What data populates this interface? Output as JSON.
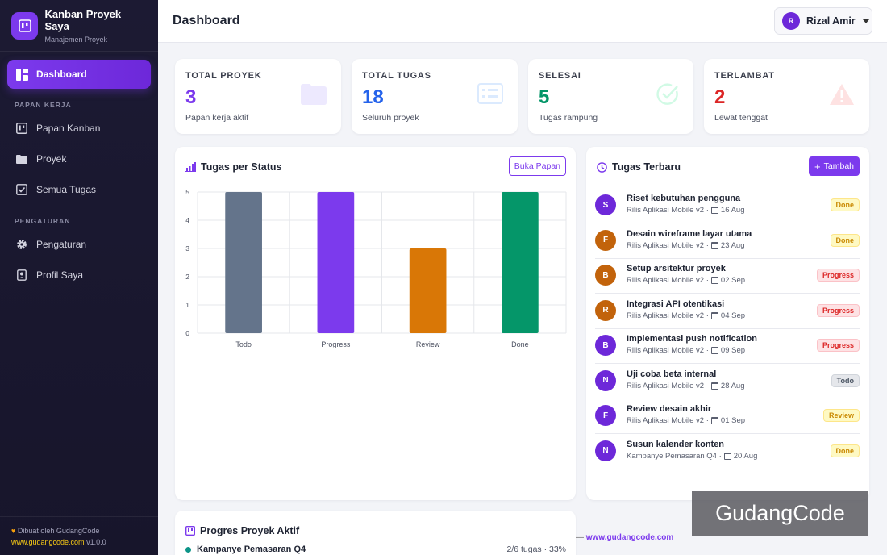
{
  "brand": {
    "title": "Kanban Proyek Saya",
    "subtitle": "Manajemen Proyek"
  },
  "sidebar": {
    "active": {
      "label": "Dashboard",
      "icon": "dashboard-icon"
    },
    "section_workspace": "PAPAN KERJA",
    "workspace_items": [
      {
        "label": "Papan Kanban",
        "icon": "kanban-icon"
      },
      {
        "label": "Proyek",
        "icon": "folder-icon"
      },
      {
        "label": "Semua Tugas",
        "icon": "checklist-icon"
      }
    ],
    "section_settings": "PENGATURAN",
    "settings_items": [
      {
        "label": "Pengaturan",
        "icon": "gear-icon"
      },
      {
        "label": "Profil Saya",
        "icon": "profile-icon"
      }
    ],
    "footer": {
      "made_by": "Dibuat oleh GudangCode",
      "link": "www.gudangcode.com",
      "version": "v1.0.0"
    }
  },
  "header": {
    "title": "Dashboard",
    "user_initial": "R",
    "user_name": "Rizal Amir"
  },
  "stats": [
    {
      "label": "TOTAL PROYEK",
      "value": "3",
      "sub": "Papan kerja aktif",
      "color": "#7c3aed",
      "icon": "folder-icon"
    },
    {
      "label": "TOTAL TUGAS",
      "value": "18",
      "sub": "Seluruh proyek",
      "color": "#2563eb",
      "icon": "list-icon"
    },
    {
      "label": "SELESAI",
      "value": "5",
      "sub": "Tugas rampung",
      "color": "#059669",
      "icon": "check-circle-icon"
    },
    {
      "label": "TERLAMBAT",
      "value": "2",
      "sub": "Lewat tenggat",
      "color": "#dc2626",
      "icon": "warning-icon"
    }
  ],
  "chart_card": {
    "title": "Tugas per Status",
    "button": "Buka Papan"
  },
  "chart_data": {
    "type": "bar",
    "categories": [
      "Todo",
      "Progress",
      "Review",
      "Done"
    ],
    "values": [
      5,
      5,
      3,
      5
    ],
    "colors": [
      "#64748b",
      "#7c3aed",
      "#d97706",
      "#059669"
    ],
    "title": "Tugas per Status",
    "ylim": [
      0,
      5
    ],
    "yticks": [
      0,
      1,
      2,
      3,
      4,
      5
    ],
    "grid": true
  },
  "tasks_card": {
    "title": "Tugas Terbaru",
    "add_button": "Tambah",
    "tasks": [
      {
        "initial": "S",
        "avatar_color": "#6d28d9",
        "title": "Riset kebutuhan pengguna",
        "project": "Rilis Aplikasi Mobile v2 ·",
        "date": "16 Aug",
        "status": "Done"
      },
      {
        "initial": "F",
        "avatar_color": "#c2630b",
        "title": "Desain wireframe layar utama",
        "project": "Rilis Aplikasi Mobile v2 ·",
        "date": "23 Aug",
        "status": "Done"
      },
      {
        "initial": "B",
        "avatar_color": "#c2630b",
        "title": "Setup arsitektur proyek",
        "project": "Rilis Aplikasi Mobile v2 ·",
        "date": "02 Sep",
        "status": "Progress"
      },
      {
        "initial": "R",
        "avatar_color": "#c2630b",
        "title": "Integrasi API otentikasi",
        "project": "Rilis Aplikasi Mobile v2 ·",
        "date": "04 Sep",
        "status": "Progress"
      },
      {
        "initial": "B",
        "avatar_color": "#6d28d9",
        "title": "Implementasi push notification",
        "project": "Rilis Aplikasi Mobile v2 ·",
        "date": "09 Sep",
        "status": "Progress"
      },
      {
        "initial": "N",
        "avatar_color": "#6d28d9",
        "title": "Uji coba beta internal",
        "project": "Rilis Aplikasi Mobile v2 ·",
        "date": "28 Aug",
        "status": "Todo"
      },
      {
        "initial": "F",
        "avatar_color": "#6d28d9",
        "title": "Review desain akhir",
        "project": "Rilis Aplikasi Mobile v2 ·",
        "date": "01 Sep",
        "status": "Review"
      },
      {
        "initial": "N",
        "avatar_color": "#6d28d9",
        "title": "Susun kalender konten",
        "project": "Kampanye Pemasaran Q4 ·",
        "date": "20 Aug",
        "status": "Done"
      }
    ]
  },
  "progress_card": {
    "title": "Progres Proyek Aktif",
    "projects": [
      {
        "name": "Kampanye Pemasaran Q4",
        "stats": "2/6 tugas · 33%"
      }
    ]
  },
  "footer_strip": {
    "dash": "—",
    "link": "www.gudangcode.com"
  },
  "watermark": "GudangCode"
}
